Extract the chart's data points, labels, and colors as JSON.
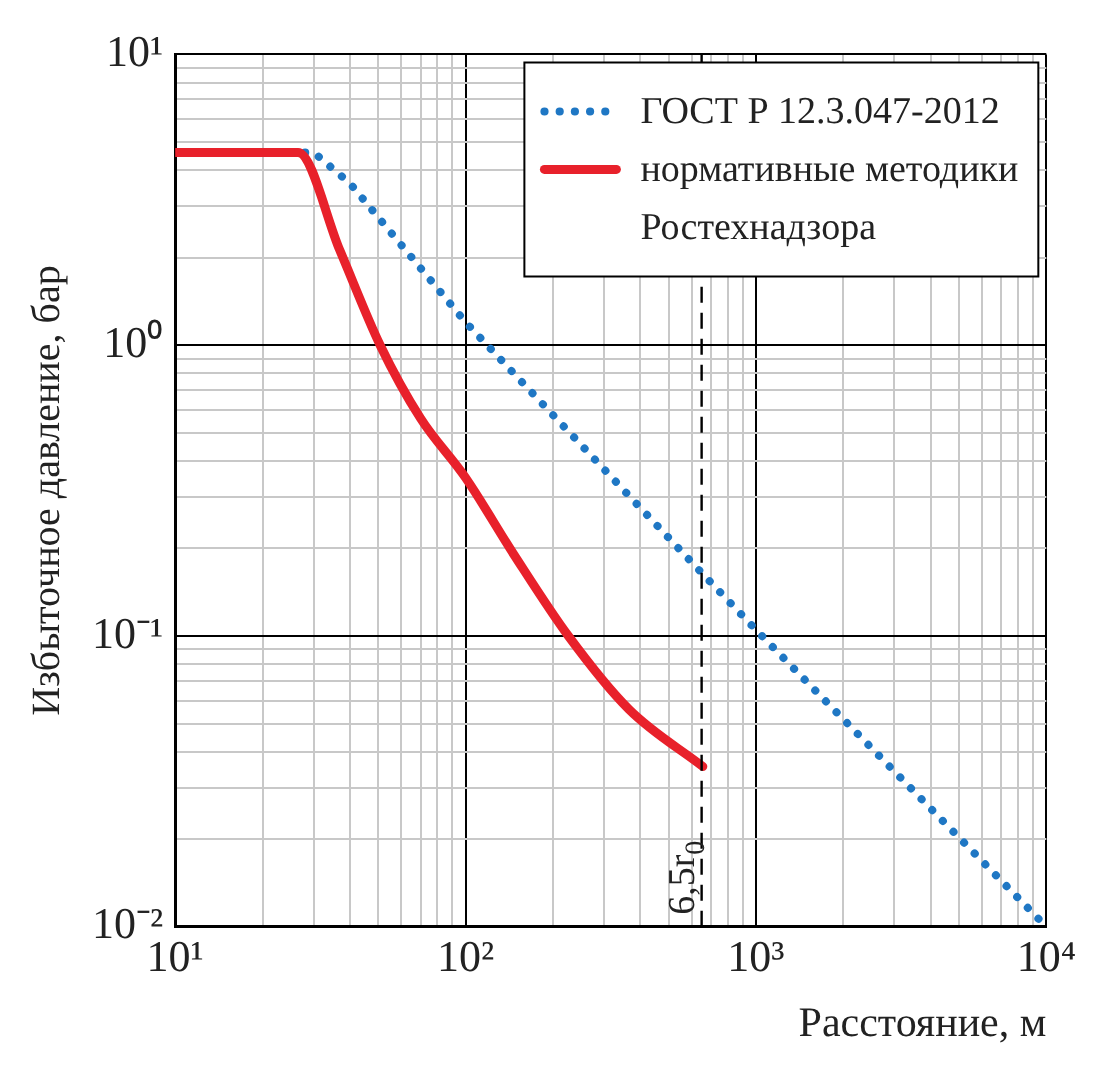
{
  "chart_data": {
    "type": "line",
    "xlabel": "Расстояние, м",
    "ylabel": "Избыточное давление, бар",
    "log": "xy",
    "grid": true,
    "legend": "top right",
    "xlim": [
      10,
      10000
    ],
    "xticks": [
      {
        "value": 10,
        "label": "10¹"
      },
      {
        "value": 100,
        "label": "10²"
      },
      {
        "value": 1000,
        "label": "10³"
      },
      {
        "value": 10000,
        "label": "10⁴"
      }
    ],
    "ylim": [
      0.01,
      10
    ],
    "yticks": [
      {
        "value": 0.01,
        "label": "10⁻²"
      },
      {
        "value": 0.1,
        "label": "10⁻¹"
      },
      {
        "value": 1,
        "label": "10⁰"
      },
      {
        "value": 10,
        "label": "10¹"
      }
    ],
    "series": [
      {
        "name": "ГОСТ Р 12.3.047-2012",
        "color": "#1f77c4",
        "line_style": "dotted",
        "x": [
          28,
          30,
          40,
          100,
          650,
          1000,
          10000
        ],
        "values": [
          4.6,
          4.6,
          3.6,
          1.2,
          0.165,
          0.105,
          0.01
        ]
      },
      {
        "name": "нормативные методики Ростехнадзора",
        "color": "#e8212b",
        "line_style": "solid",
        "x": [
          10,
          26.5,
          36.9,
          50.8,
          70,
          100,
          147,
          226,
          365,
          656
        ],
        "values": [
          4.6,
          4.6,
          2.12,
          1.0,
          0.56,
          0.35,
          0.19,
          0.1,
          0.056,
          0.0356
        ]
      }
    ],
    "ref_lines": [
      {
        "axis": "x",
        "value": 650,
        "label": "6,5r$_{0}$",
        "line_style": "dashed",
        "color": "#000000"
      }
    ]
  }
}
